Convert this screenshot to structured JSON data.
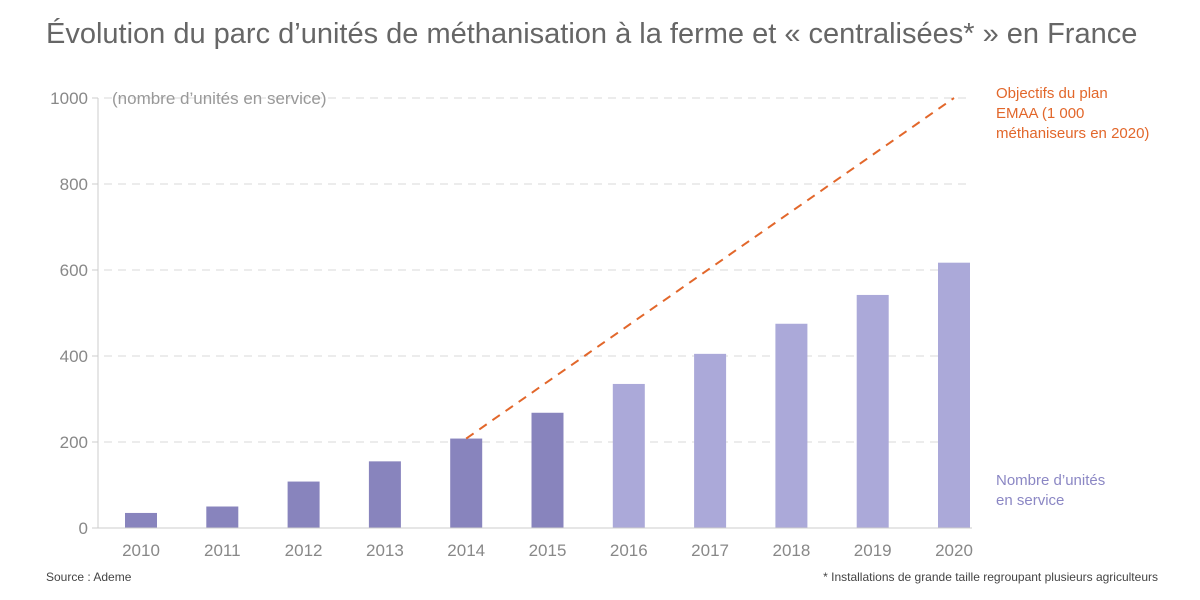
{
  "header": {
    "title": "Évolution du parc d’unités de méthanisation à la ferme et « centralisées* » en France"
  },
  "footer": {
    "source": "Source : Ademe",
    "footnote": "* Installations de grande taille regroupant plusieurs agriculteurs"
  },
  "chart_data": {
    "type": "bar",
    "title": "Évolution du parc d’unités de méthanisation à la ferme et « centralisées* » en France",
    "ylabel": "(nombre d’unités en service)",
    "xlabel": "",
    "ylim": [
      0,
      1000
    ],
    "yticks": [
      0,
      200,
      400,
      600,
      800,
      1000
    ],
    "grid": true,
    "categories": [
      "2010",
      "2011",
      "2012",
      "2013",
      "2014",
      "2015",
      "2016",
      "2017",
      "2018",
      "2019",
      "2020"
    ],
    "series": [
      {
        "name": "Nombre d’unités en service",
        "values": [
          35,
          50,
          108,
          155,
          208,
          268,
          335,
          405,
          475,
          542,
          617
        ],
        "colors": [
          "#8884bd",
          "#8884bd",
          "#8884bd",
          "#8884bd",
          "#8884bd",
          "#8884bd",
          "#aba9d9",
          "#aba9d9",
          "#aba9d9",
          "#aba9d9",
          "#aba9d9"
        ]
      },
      {
        "name": "Objectifs du plan EMAA (1 000 méthaniseurs en 2020)",
        "type": "line",
        "style": "dashed",
        "color": "#e2672b",
        "points": [
          {
            "x": "2014",
            "y": 208
          },
          {
            "x": "2020",
            "y": 1000
          }
        ]
      }
    ],
    "legend": {
      "target_lines": [
        "Objectifs du plan",
        "EMAA (1 000",
        "méthaniseurs en 2020)"
      ],
      "count_lines": [
        "Nombre d’unités",
        "en service"
      ]
    }
  }
}
